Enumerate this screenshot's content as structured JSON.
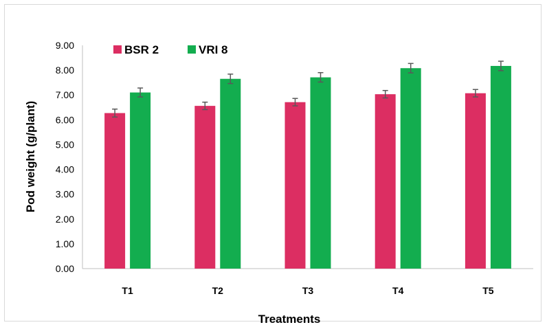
{
  "chart_data": {
    "type": "bar",
    "title": "",
    "xlabel": "Treatments",
    "ylabel": "Pod weight (g/plant)",
    "ylim": [
      0,
      9
    ],
    "ytick_step": 1,
    "ytick_labels": [
      "0.00",
      "1.00",
      "2.00",
      "3.00",
      "4.00",
      "5.00",
      "6.00",
      "7.00",
      "8.00",
      "9.00"
    ],
    "categories": [
      "T1",
      "T2",
      "T3",
      "T4",
      "T5"
    ],
    "series": [
      {
        "name": "BSR 2",
        "color": "#dc2e62",
        "values": [
          6.27,
          6.56,
          6.71,
          7.03,
          7.07
        ],
        "errors": [
          0.16,
          0.15,
          0.15,
          0.15,
          0.15
        ]
      },
      {
        "name": "VRI 8",
        "color": "#13ad4f",
        "values": [
          7.1,
          7.65,
          7.71,
          8.08,
          8.17
        ],
        "errors": [
          0.18,
          0.19,
          0.19,
          0.19,
          0.19
        ]
      }
    ],
    "legend_position": "top-left",
    "grid": false
  }
}
